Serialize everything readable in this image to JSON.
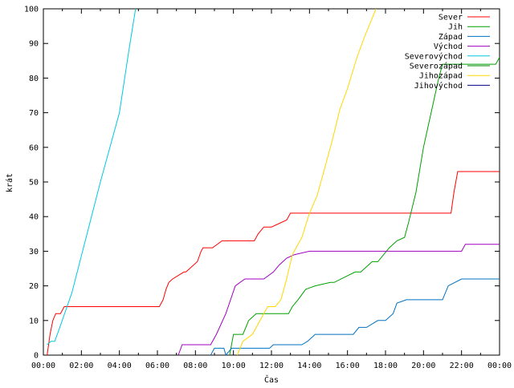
{
  "chart_data": {
    "type": "line",
    "title": "",
    "xlabel": "Čas",
    "ylabel": "krát",
    "xlim": [
      0,
      24
    ],
    "ylim": [
      0,
      100
    ],
    "x_tick_labels": [
      "00:00",
      "02:00",
      "04:00",
      "06:00",
      "08:00",
      "10:00",
      "12:00",
      "14:00",
      "16:00",
      "18:00",
      "20:00",
      "22:00",
      "00:00"
    ],
    "y_ticks": [
      0,
      10,
      20,
      30,
      40,
      50,
      60,
      70,
      80,
      90,
      100
    ],
    "grid": false,
    "legend_position": "top-right",
    "series": [
      {
        "name": "Sever",
        "color": "#ff0000",
        "x": [
          0.2,
          0.35,
          0.5,
          0.65,
          0.9,
          1.1,
          6.1,
          6.3,
          6.45,
          6.6,
          6.8,
          7.4,
          7.5,
          8.1,
          8.3,
          8.4,
          8.9,
          9.4,
          11.1,
          11.3,
          11.6,
          12.0,
          12.8,
          13.0,
          21.45,
          21.6,
          21.8,
          24.0
        ],
        "values": [
          0,
          6,
          10,
          12,
          12,
          14,
          14,
          16,
          19,
          21,
          22,
          24,
          24,
          27,
          30,
          31,
          31,
          33,
          33,
          35,
          37,
          37,
          39,
          41,
          41,
          47,
          53,
          53
        ]
      },
      {
        "name": "Jih",
        "color": "#00a000",
        "x": [
          9.8,
          10.0,
          10.5,
          10.8,
          11.2,
          11.6,
          12.9,
          13.1,
          13.4,
          13.8,
          14.3,
          15.1,
          15.3,
          16.4,
          16.7,
          17.3,
          17.6,
          18.2,
          18.6,
          19.0,
          19.2,
          19.6,
          20.0,
          20.4,
          20.8,
          21.0,
          23.8,
          24.0
        ],
        "values": [
          0,
          6,
          6,
          10,
          12,
          12,
          12,
          14,
          16,
          19,
          20,
          21,
          21,
          24,
          24,
          27,
          27,
          31,
          33,
          34,
          38,
          47,
          60,
          70,
          80,
          84,
          84,
          86
        ]
      },
      {
        "name": "Západ",
        "color": "#0070c0",
        "x": [
          8.8,
          9.0,
          9.5,
          9.6,
          9.9,
          10.1,
          11.9,
          12.1,
          13.6,
          13.9,
          14.3,
          16.3,
          16.6,
          17.0,
          17.6,
          18.0,
          18.4,
          18.6,
          19.1,
          21.0,
          21.3,
          22.0,
          24.0
        ],
        "values": [
          0,
          2,
          2,
          0,
          2,
          2,
          2,
          3,
          3,
          4,
          6,
          6,
          8,
          8,
          10,
          10,
          12,
          15,
          16,
          16,
          20,
          22,
          22
        ]
      },
      {
        "name": "Východ",
        "color": "#a000c0",
        "x": [
          7.1,
          7.3,
          8.8,
          9.1,
          9.6,
          10.1,
          10.6,
          11.6,
          12.1,
          12.4,
          12.8,
          13.2,
          14.0,
          22.0,
          22.2,
          24.0
        ],
        "values": [
          0,
          3,
          3,
          6,
          12,
          20,
          22,
          22,
          24,
          26,
          28,
          29,
          30,
          30,
          32,
          32
        ]
      },
      {
        "name": "Severovýchod",
        "color": "#00c8e0",
        "x": [
          0.2,
          0.4,
          0.6,
          0.8,
          1.5,
          3.0,
          4.0,
          4.5,
          4.85
        ],
        "values": [
          3,
          4,
          4,
          7,
          18,
          50,
          70,
          88,
          100
        ]
      },
      {
        "name": "Severozápad",
        "color": "#008000",
        "x": [],
        "values": []
      },
      {
        "name": "Jihozápad",
        "color": "#ffd700",
        "x": [
          10.2,
          10.5,
          11.0,
          11.4,
          11.8,
          12.2,
          12.5,
          12.8,
          13.1,
          13.6,
          14.0,
          14.4,
          14.8,
          15.2,
          15.6,
          16.0,
          16.5,
          16.9,
          17.2,
          17.5
        ],
        "values": [
          0,
          4,
          6,
          10,
          14,
          14,
          16,
          22,
          29,
          34,
          41,
          46,
          54,
          62,
          71,
          77,
          86,
          92,
          96,
          100
        ]
      },
      {
        "name": "Jihovýchod",
        "color": "#000080",
        "x": [],
        "values": []
      }
    ]
  }
}
